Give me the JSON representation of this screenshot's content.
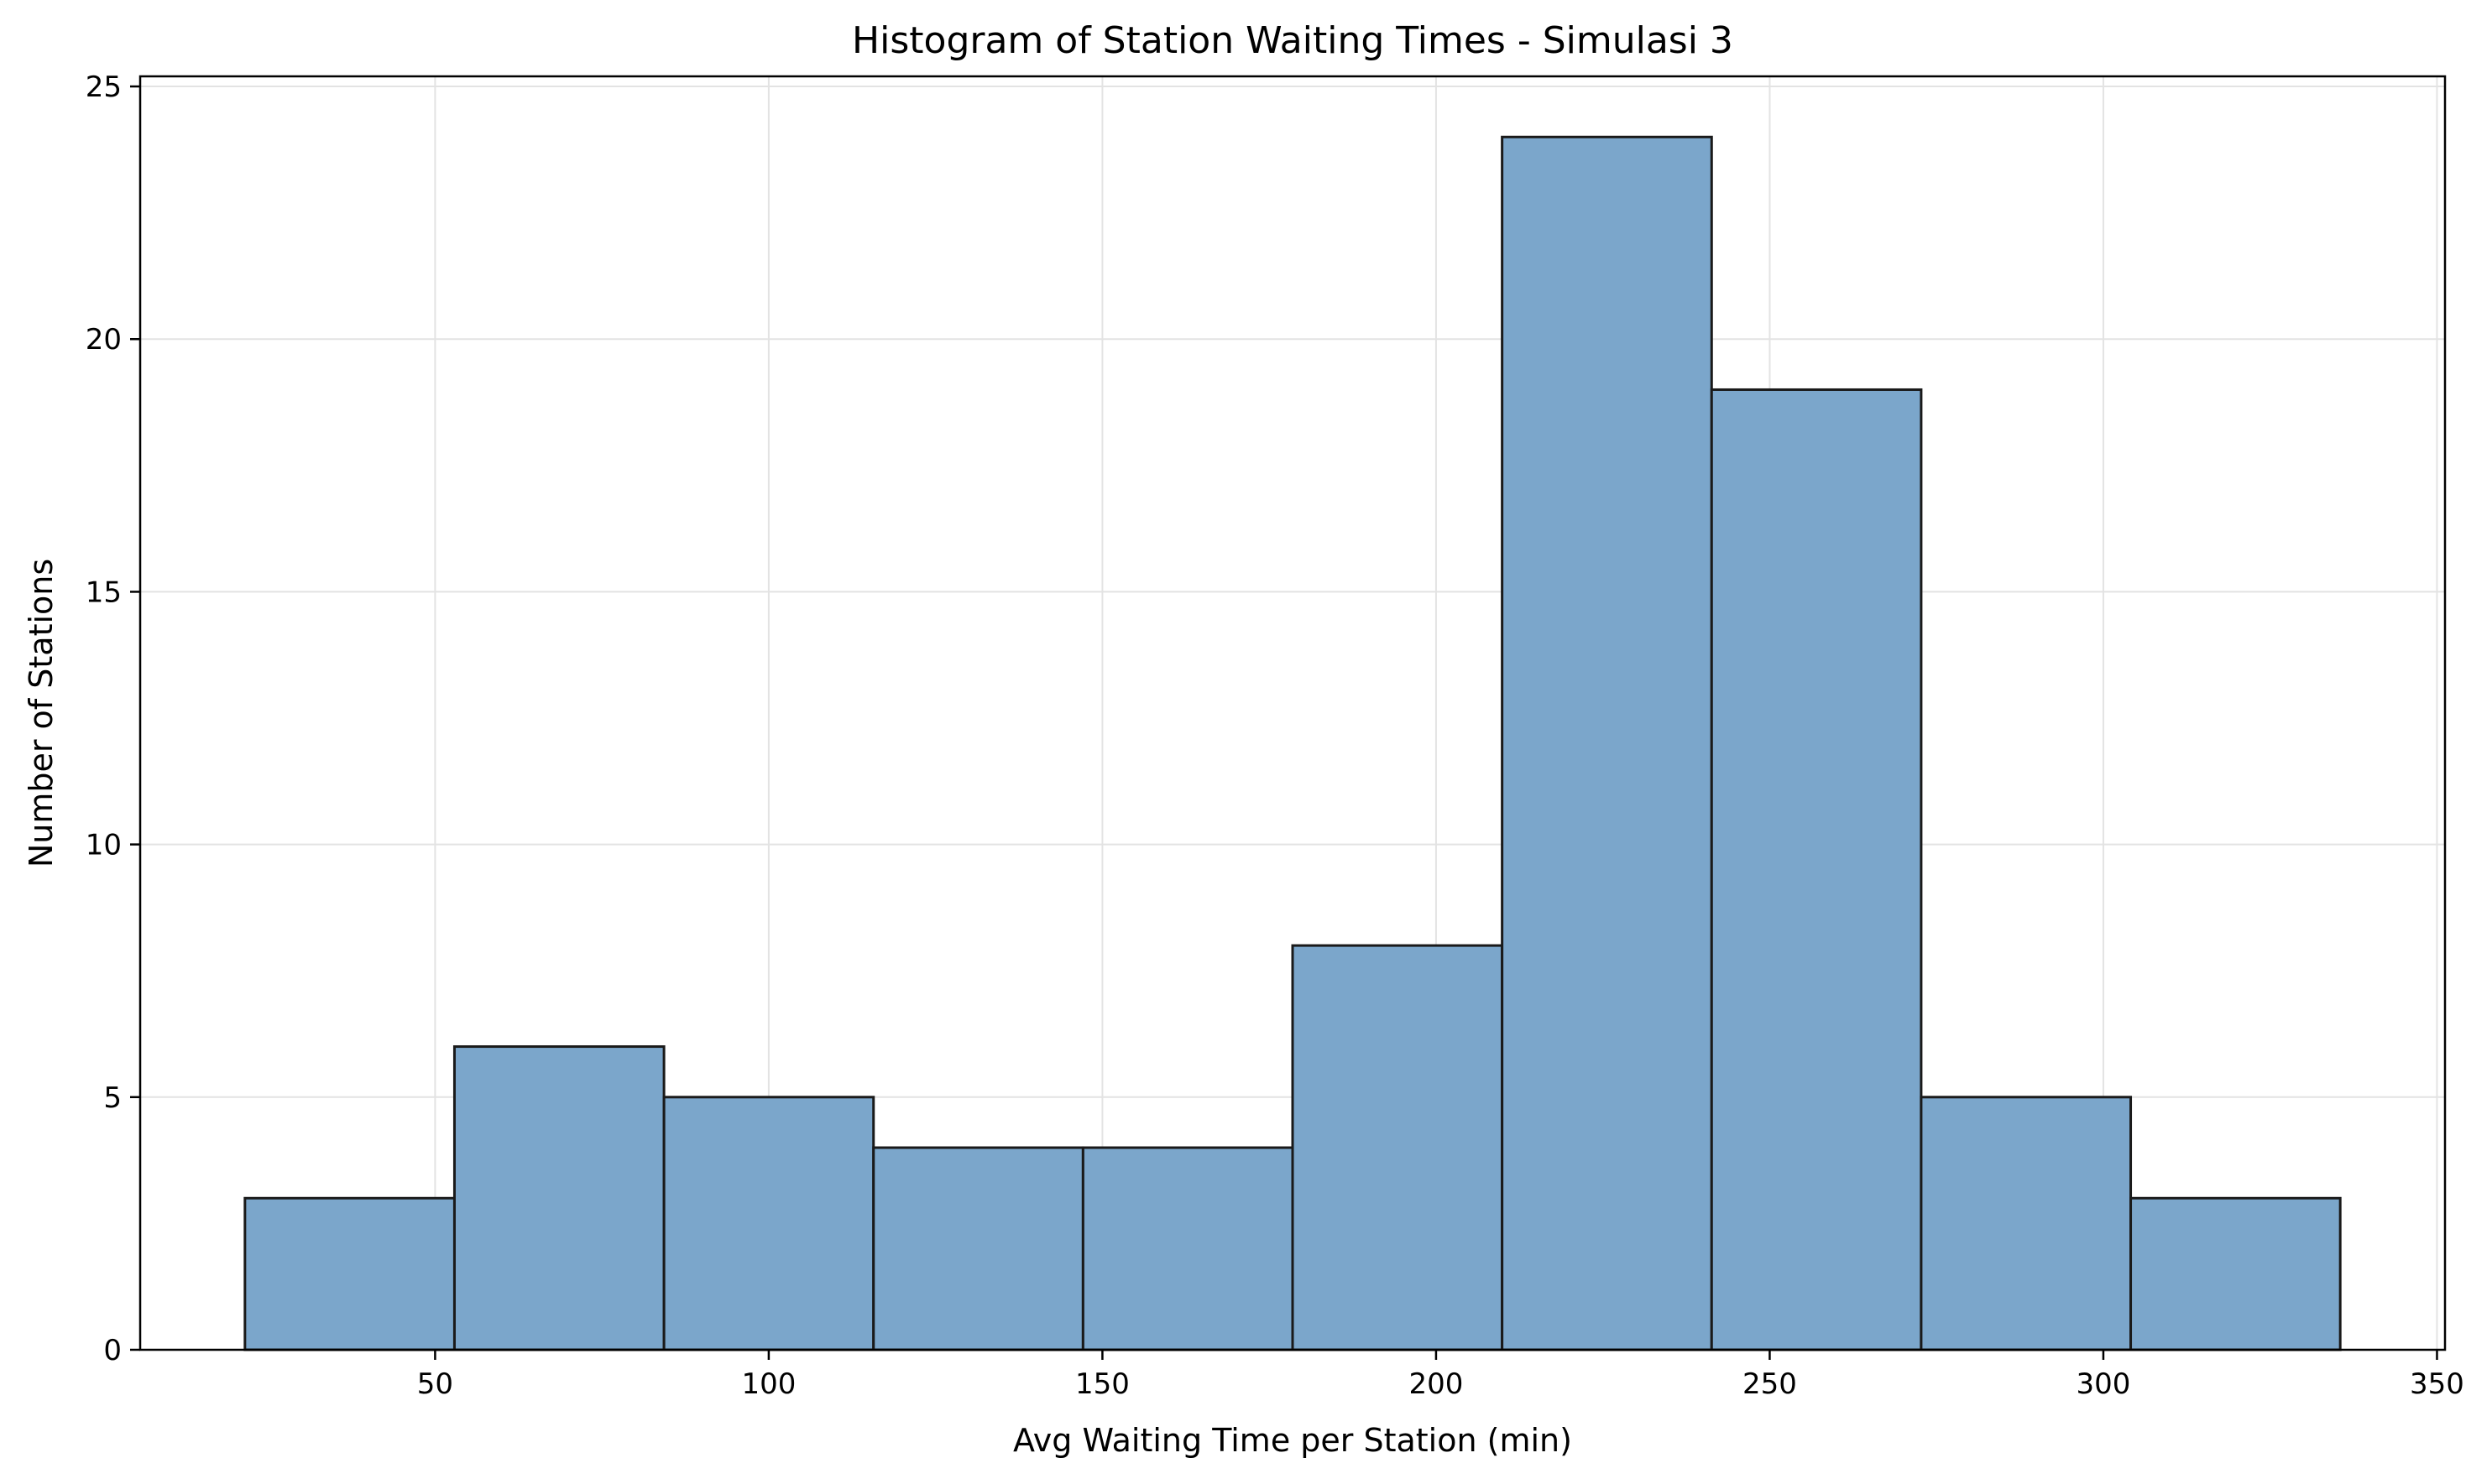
{
  "chart_data": {
    "type": "bar",
    "title": "Histogram of Station Waiting Times - Simulasi 3",
    "xlabel": "Avg Waiting Time per Station (min)",
    "ylabel": "Number of Stations",
    "bin_edges": [
      21.5,
      52.9,
      84.3,
      115.7,
      147.1,
      178.5,
      209.9,
      241.3,
      272.7,
      304.1,
      335.5
    ],
    "values": [
      3,
      6,
      5,
      4,
      4,
      8,
      24,
      19,
      5,
      3
    ],
    "xlim": [
      5.8,
      351.2
    ],
    "ylim": [
      0,
      25.2
    ],
    "xticks": [
      50,
      100,
      150,
      200,
      250,
      300,
      350
    ],
    "yticks": [
      0,
      5,
      10,
      15,
      20,
      25
    ],
    "grid": true,
    "colors": {
      "bar_fill": "#7ba6cb",
      "bar_edge": "#1a1a1a",
      "grid": "#e3e3e3",
      "axis": "#000000"
    }
  }
}
